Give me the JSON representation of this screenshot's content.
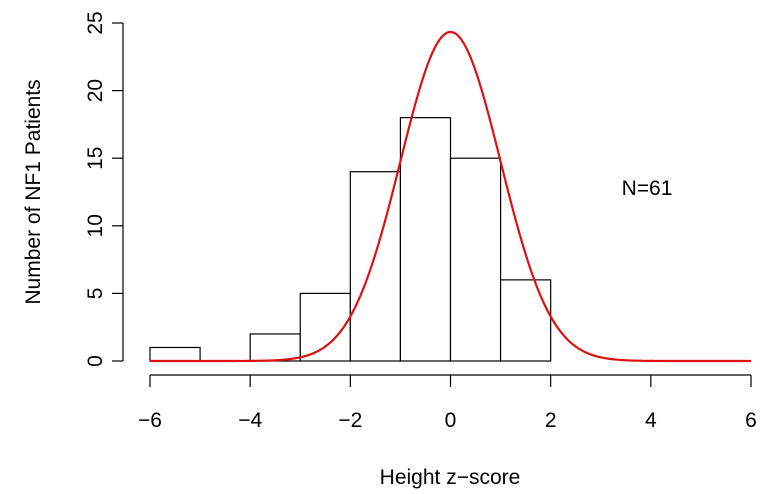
{
  "chart_data": {
    "type": "histogram",
    "xlabel": "Height z−score",
    "ylabel": "Number of NF1 Patients",
    "annotation": "N=61",
    "xlim": [
      -6,
      6
    ],
    "ylim": [
      0,
      25
    ],
    "x_ticks": [
      -6,
      -4,
      -2,
      0,
      2,
      4,
      6
    ],
    "x_tick_labels": [
      "−6",
      "−4",
      "−2",
      "0",
      "2",
      "4",
      "6"
    ],
    "y_ticks": [
      0,
      5,
      10,
      15,
      20,
      25
    ],
    "y_tick_labels": [
      "0",
      "5",
      "10",
      "15",
      "20",
      "25"
    ],
    "bins": [
      {
        "x0": -6,
        "x1": -5,
        "count": 1
      },
      {
        "x0": -5,
        "x1": -4,
        "count": 0
      },
      {
        "x0": -4,
        "x1": -3,
        "count": 2
      },
      {
        "x0": -3,
        "x1": -2,
        "count": 5
      },
      {
        "x0": -2,
        "x1": -1,
        "count": 14
      },
      {
        "x0": -1,
        "x1": 0,
        "count": 18
      },
      {
        "x0": 0,
        "x1": 1,
        "count": 15
      },
      {
        "x0": 1,
        "x1": 2,
        "count": 6
      }
    ],
    "normal_curve": {
      "mean": 0,
      "sd": 1,
      "n": 61,
      "binwidth": 1,
      "color": "#dd1111"
    },
    "bar_fill": "#ffffff",
    "bar_stroke": "#000000",
    "grid": false
  }
}
